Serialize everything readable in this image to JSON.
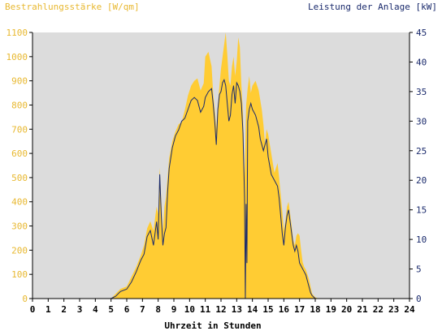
{
  "chart_data": {
    "type": "area",
    "title_left": "Bestrahlungsstärke [W/qm]",
    "title_right": "Leistung der Anlage [kW]",
    "xlabel": "Uhrzeit in Stunden",
    "x_ticks": [
      "0",
      "1",
      "2",
      "3",
      "4",
      "5",
      "6",
      "7",
      "8",
      "9",
      "10",
      "11",
      "12",
      "13",
      "14",
      "15",
      "16",
      "17",
      "18",
      "19",
      "20",
      "21",
      "22",
      "23",
      "24"
    ],
    "y_left_ticks": [
      "0",
      "100",
      "200",
      "300",
      "400",
      "500",
      "600",
      "700",
      "800",
      "900",
      "1000",
      "1100"
    ],
    "y_right_ticks": [
      "0",
      "5",
      "10",
      "15",
      "20",
      "25",
      "30",
      "35",
      "40",
      "45"
    ],
    "xlim": [
      0,
      24
    ],
    "ylim_left": [
      0,
      1100
    ],
    "ylim_right": [
      0,
      45
    ],
    "colors": {
      "irradiance_fill": "#ffcc33",
      "power_line": "#1a2a6c",
      "plot_bg": "#dcdcdc",
      "left_axis_text": "#e8b830",
      "right_axis_text": "#1a2a6c",
      "axis_line": "#000000"
    },
    "series": [
      {
        "axis": "left",
        "style": "filled-area",
        "x": [
          0,
          5.0,
          5.3,
          5.6,
          6.0,
          6.3,
          6.6,
          6.9,
          7.1,
          7.3,
          7.5,
          7.7,
          7.9,
          8.0,
          8.1,
          8.2,
          8.3,
          8.4,
          8.5,
          8.6,
          8.7,
          8.9,
          9.1,
          9.3,
          9.5,
          9.7,
          9.9,
          10.1,
          10.3,
          10.5,
          10.7,
          10.9,
          11.0,
          11.2,
          11.4,
          11.5,
          11.6,
          11.7,
          11.8,
          11.9,
          12.0,
          12.1,
          12.2,
          12.3,
          12.4,
          12.5,
          12.6,
          12.7,
          12.8,
          12.9,
          13.0,
          13.1,
          13.2,
          13.3,
          13.4,
          13.5,
          13.6,
          13.7,
          13.8,
          13.9,
          14.0,
          14.2,
          14.4,
          14.5,
          14.6,
          14.7,
          14.8,
          14.9,
          15.0,
          15.2,
          15.4,
          15.6,
          15.7,
          15.8,
          15.9,
          16.0,
          16.1,
          16.2,
          16.3,
          16.4,
          16.5,
          16.6,
          16.7,
          16.8,
          16.9,
          17.0,
          17.1,
          17.2,
          17.3,
          17.4,
          17.5,
          17.6,
          17.7,
          17.8,
          18.0,
          18.2,
          18.4,
          18.6,
          18.8,
          19.0,
          19.2,
          19.4,
          24
        ],
        "y": [
          0,
          0,
          20,
          40,
          50,
          90,
          130,
          180,
          220,
          290,
          320,
          280,
          380,
          350,
          540,
          400,
          280,
          380,
          420,
          500,
          580,
          650,
          690,
          720,
          730,
          780,
          840,
          880,
          900,
          910,
          860,
          890,
          1000,
          1020,
          960,
          850,
          780,
          700,
          800,
          880,
          950,
          1000,
          1050,
          1100,
          1010,
          900,
          880,
          960,
          1000,
          920,
          980,
          1080,
          1040,
          880,
          760,
          500,
          800,
          870,
          920,
          850,
          880,
          900,
          860,
          820,
          780,
          720,
          640,
          700,
          680,
          600,
          520,
          560,
          500,
          430,
          360,
          280,
          320,
          380,
          400,
          350,
          300,
          240,
          220,
          260,
          270,
          260,
          200,
          150,
          130,
          120,
          100,
          80,
          50,
          20,
          5,
          0,
          0,
          0,
          0,
          0,
          0,
          0,
          0
        ]
      },
      {
        "axis": "right",
        "style": "line",
        "x": [
          0,
          5.0,
          5.3,
          5.6,
          6.0,
          6.3,
          6.6,
          6.9,
          7.1,
          7.3,
          7.5,
          7.7,
          7.9,
          8.0,
          8.1,
          8.2,
          8.3,
          8.4,
          8.5,
          8.6,
          8.7,
          8.9,
          9.1,
          9.3,
          9.5,
          9.7,
          9.9,
          10.1,
          10.3,
          10.5,
          10.7,
          10.9,
          11.0,
          11.2,
          11.4,
          11.5,
          11.6,
          11.7,
          11.8,
          11.9,
          12.0,
          12.1,
          12.2,
          12.3,
          12.4,
          12.5,
          12.6,
          12.7,
          12.8,
          12.9,
          13.0,
          13.1,
          13.2,
          13.3,
          13.4,
          13.5,
          13.55,
          13.6,
          13.65,
          13.7,
          13.8,
          13.9,
          14.0,
          14.2,
          14.4,
          14.5,
          14.6,
          14.7,
          14.8,
          14.9,
          15.0,
          15.2,
          15.4,
          15.6,
          15.7,
          15.8,
          15.9,
          16.0,
          16.1,
          16.2,
          16.3,
          16.4,
          16.5,
          16.6,
          16.7,
          16.8,
          16.9,
          17.0,
          17.1,
          17.2,
          17.3,
          17.4,
          17.5,
          17.6,
          17.7,
          17.8,
          18.0,
          18.2,
          18.4,
          18.6,
          18.8,
          19.0,
          19.2,
          19.4,
          24
        ],
        "y": [
          0,
          0,
          0.4,
          1.2,
          1.6,
          2.8,
          4.5,
          6.5,
          7.5,
          10.5,
          11.5,
          9,
          13,
          10,
          21,
          14,
          9,
          11,
          12,
          18,
          22,
          25.5,
          27.5,
          28.5,
          30,
          30.5,
          32,
          33.5,
          34,
          33.5,
          31.5,
          32.5,
          34,
          35,
          35.5,
          33,
          30,
          26,
          32,
          34.5,
          35,
          36.5,
          37,
          36,
          33,
          30,
          31,
          34.5,
          36,
          33,
          36.5,
          36,
          35,
          33,
          28,
          17,
          0,
          16,
          6,
          30,
          32,
          33,
          32,
          31,
          29,
          27,
          26,
          25,
          26,
          27,
          24,
          21,
          20,
          19,
          17,
          14,
          11,
          9,
          12,
          14,
          15,
          13,
          11,
          9,
          8,
          9,
          8,
          6,
          5.5,
          5,
          4.5,
          4,
          3,
          2,
          1,
          0.5,
          0,
          0,
          0,
          0,
          0,
          0,
          0,
          0,
          0
        ]
      }
    ]
  }
}
